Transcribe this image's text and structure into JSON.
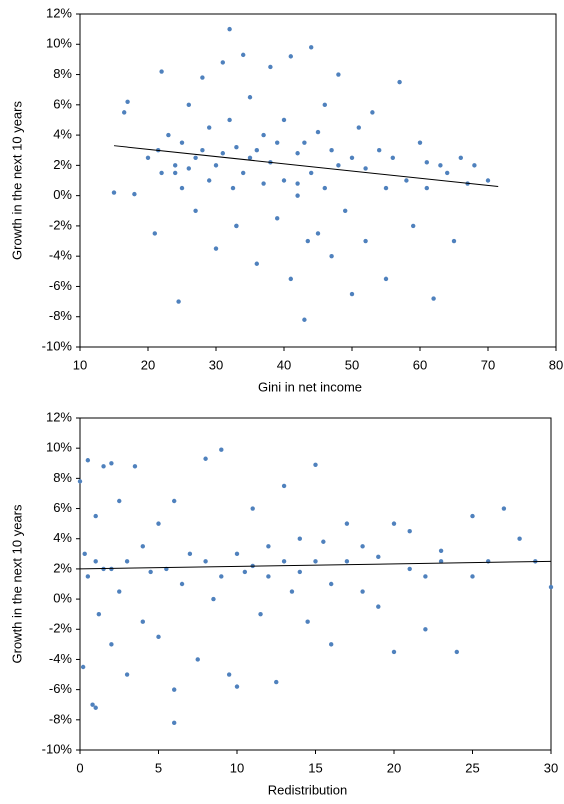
{
  "chart_data": [
    {
      "type": "scatter",
      "xlabel": "Gini in net income",
      "ylabel": "Growth in the next 10 years",
      "color": "#4f81bd",
      "x": [
        15,
        16.5,
        17,
        18,
        20,
        21,
        21.5,
        22,
        22,
        23,
        24,
        24.5,
        25,
        25,
        26,
        26,
        27,
        27,
        28,
        28,
        29,
        29,
        30,
        30,
        31,
        31,
        32,
        32,
        32.5,
        33,
        33,
        34,
        34,
        35,
        35,
        36,
        36,
        37,
        37,
        38,
        38,
        39,
        39,
        40,
        40,
        41,
        41,
        42,
        42,
        43,
        43,
        43.5,
        44,
        44,
        45,
        45,
        46,
        46,
        47,
        47,
        48,
        48,
        49,
        50,
        50,
        51,
        52,
        52,
        53,
        54,
        55,
        55,
        56,
        57,
        58,
        59,
        60,
        61,
        62,
        63,
        64,
        65,
        66,
        67,
        68,
        70,
        24,
        33,
        42,
        61
      ],
      "y": [
        0.2,
        5.5,
        6.2,
        0.1,
        2.5,
        -2.5,
        3,
        8.2,
        1.5,
        4,
        2,
        -7,
        3.5,
        0.5,
        6,
        1.8,
        2.5,
        -1,
        7.8,
        3,
        1,
        4.5,
        2,
        -3.5,
        8.8,
        2.8,
        11,
        5,
        0.5,
        3.2,
        -2,
        9.3,
        1.5,
        6.5,
        2.5,
        -4.5,
        3,
        4,
        0.8,
        8.5,
        2.2,
        -1.5,
        3.5,
        5,
        1,
        9.2,
        -5.5,
        2.8,
        0,
        -8.2,
        3.5,
        -3,
        9.8,
        1.5,
        4.2,
        -2.5,
        6,
        0.5,
        3,
        -4,
        8,
        2,
        -1,
        2.5,
        -6.5,
        4.5,
        1.8,
        -3,
        5.5,
        3,
        0.5,
        -5.5,
        2.5,
        7.5,
        1,
        -2,
        3.5,
        0.5,
        -6.8,
        2,
        1.5,
        -3,
        2.5,
        0.8,
        2,
        1,
        1.5,
        -2,
        0.8,
        2.2
      ],
      "trendline": {
        "x": [
          15,
          71.5
        ],
        "y": [
          3.3,
          0.6
        ],
        "color": "#000000"
      },
      "xlim": [
        10,
        80
      ],
      "xticks": [
        10,
        20,
        30,
        40,
        50,
        60,
        70,
        80
      ],
      "ylim": [
        -10,
        12
      ],
      "yticks": [
        {
          "value": -10,
          "label": "-10%"
        },
        {
          "value": -8,
          "label": "-8%"
        },
        {
          "value": -6,
          "label": "-6%"
        },
        {
          "value": -4,
          "label": "-4%"
        },
        {
          "value": -2,
          "label": "-2%"
        },
        {
          "value": 0,
          "label": "0%"
        },
        {
          "value": 2,
          "label": "2%"
        },
        {
          "value": 4,
          "label": "4%"
        },
        {
          "value": 6,
          "label": "6%"
        },
        {
          "value": 8,
          "label": "8%"
        },
        {
          "value": 10,
          "label": "10%"
        },
        {
          "value": 12,
          "label": "12%"
        }
      ],
      "grid": false
    },
    {
      "type": "scatter",
      "xlabel": "Redistribution",
      "ylabel": "Growth in the next 10 years",
      "color": "#4f81bd",
      "x": [
        0,
        0.2,
        0.3,
        0.5,
        0.5,
        0.8,
        1,
        1,
        1.2,
        1.5,
        1.5,
        2,
        2,
        2.5,
        2.5,
        3,
        3,
        3.5,
        4,
        4,
        4.5,
        5,
        5,
        5.5,
        6,
        6,
        6.5,
        7,
        7.5,
        8,
        8,
        8.5,
        9,
        9,
        9.5,
        10,
        10,
        10.5,
        11,
        11,
        11.5,
        12,
        12,
        12.5,
        13,
        13,
        13.5,
        14,
        14,
        14.5,
        15,
        15,
        15.5,
        16,
        16,
        17,
        17,
        18,
        18,
        19,
        19,
        20,
        20,
        21,
        21,
        22,
        22,
        23,
        23,
        24,
        25,
        25,
        26,
        27,
        28,
        29,
        30,
        1,
        2,
        6
      ],
      "y": [
        7.8,
        -4.5,
        3,
        9.2,
        1.5,
        -7,
        2.5,
        5.5,
        -1,
        8.8,
        2,
        9,
        -3,
        0.5,
        6.5,
        2.5,
        -5,
        8.8,
        3.5,
        -1.5,
        1.8,
        5,
        -2.5,
        2,
        -8.2,
        6.5,
        1,
        3,
        -4,
        9.3,
        2.5,
        0,
        9.9,
        1.5,
        -5,
        3,
        -5.8,
        1.8,
        6,
        2.2,
        -1,
        3.5,
        1.5,
        -5.5,
        7.5,
        2.5,
        0.5,
        4,
        1.8,
        -1.5,
        8.9,
        2.5,
        3.8,
        1,
        -3,
        5,
        2.5,
        0.5,
        3.5,
        -0.5,
        2.8,
        5,
        -3.5,
        2,
        4.5,
        1.5,
        -2,
        2.5,
        3.2,
        -3.5,
        5.5,
        1.5,
        2.5,
        6,
        4,
        2.5,
        0.8,
        -7.2,
        2,
        -6
      ],
      "trendline": {
        "x": [
          0,
          30
        ],
        "y": [
          2.0,
          2.5
        ],
        "color": "#000000"
      },
      "xlim": [
        0,
        30
      ],
      "xticks": [
        0,
        5,
        10,
        15,
        20,
        25,
        30
      ],
      "ylim": [
        -10,
        12
      ],
      "yticks": [
        {
          "value": -10,
          "label": "-10%"
        },
        {
          "value": -8,
          "label": "-8%"
        },
        {
          "value": -6,
          "label": "-6%"
        },
        {
          "value": -4,
          "label": "-4%"
        },
        {
          "value": -2,
          "label": "-2%"
        },
        {
          "value": 0,
          "label": "0%"
        },
        {
          "value": 2,
          "label": "2%"
        },
        {
          "value": 4,
          "label": "4%"
        },
        {
          "value": 6,
          "label": "6%"
        },
        {
          "value": 8,
          "label": "8%"
        },
        {
          "value": 10,
          "label": "10%"
        },
        {
          "value": 12,
          "label": "12%"
        }
      ],
      "grid": false
    }
  ]
}
